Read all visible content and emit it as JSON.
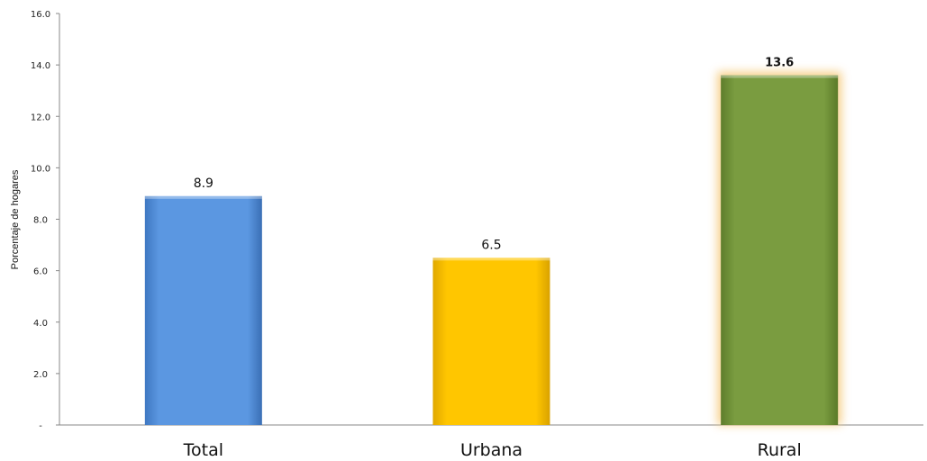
{
  "chart_data": {
    "type": "bar",
    "categories": [
      "Total",
      "Urbana",
      "Rural"
    ],
    "values": [
      8.9,
      6.5,
      13.6
    ],
    "data_labels": [
      "8.9",
      "6.5",
      "13.6"
    ],
    "title": "",
    "xlabel": "",
    "ylabel": "Porcentaje de hogares",
    "ylim": [
      0,
      16
    ],
    "y_ticks": [
      0,
      2,
      4,
      6,
      8,
      10,
      12,
      14,
      16
    ],
    "y_tick_labels": [
      "-",
      "2.0",
      "4.0",
      "6.0",
      "8.0",
      "10.0",
      "12.0",
      "14.0",
      "16.0"
    ],
    "grid": false,
    "legend": "none",
    "colors": [
      "#5b97e1",
      "#ffc600",
      "#7a9c40"
    ],
    "highlight": "Rural"
  }
}
